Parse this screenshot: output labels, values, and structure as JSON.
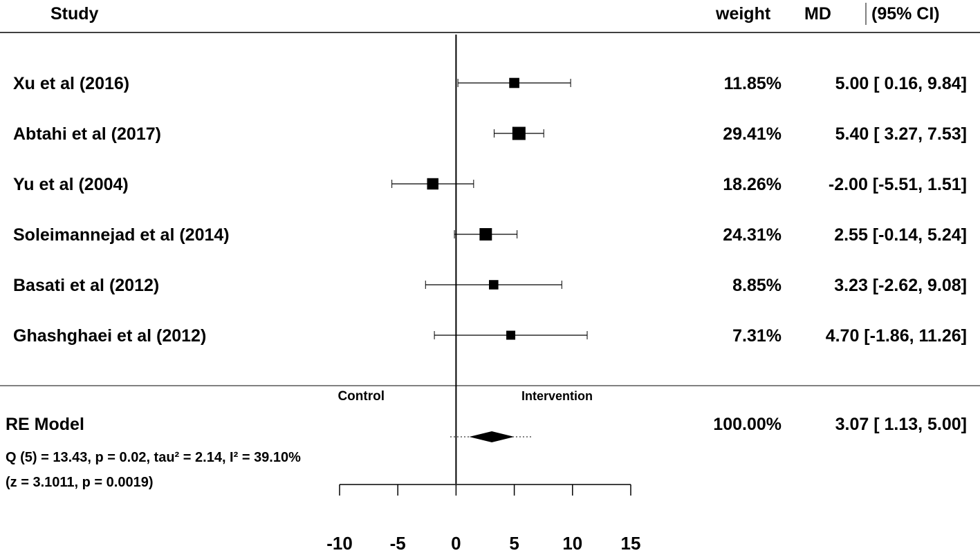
{
  "headers": {
    "study": "Study",
    "weight": "weight",
    "md": "MD",
    "ci": "(95% CI)"
  },
  "side_labels": {
    "left": "Control",
    "right": "Intervention"
  },
  "summary": {
    "label": "RE Model",
    "weight": "100.00%",
    "estimate_text": "3.07 [ 1.13,  5.00]",
    "heterogeneity": "Q (5) = 13.43, p = 0.02, tau² = 2.14, I² = 39.10%",
    "test": "(z = 3.1011, p = 0.0019)"
  },
  "chart_data": {
    "type": "forest",
    "x_ticks": [
      "-10",
      "-5",
      "0",
      "5",
      "10",
      "15"
    ],
    "xlim": [
      -10,
      15
    ],
    "reference_line": 0,
    "studies": [
      {
        "name": "Xu et al  (2016)",
        "weight": "11.85%",
        "weight_value": 11.85,
        "md": 5.0,
        "lower": 0.16,
        "upper": 9.84,
        "estimate_text": "5.00 [ 0.16,  9.84]"
      },
      {
        "name": "Abtahi et al (2017)",
        "weight": "29.41%",
        "weight_value": 29.41,
        "md": 5.4,
        "lower": 3.27,
        "upper": 7.53,
        "estimate_text": "5.40 [ 3.27,  7.53]"
      },
      {
        "name": "Yu et al (2004)",
        "weight": "18.26%",
        "weight_value": 18.26,
        "md": -2.0,
        "lower": -5.51,
        "upper": 1.51,
        "estimate_text": "-2.00 [-5.51,  1.51]"
      },
      {
        "name": "Soleimannejad et al (2014)",
        "weight": "24.31%",
        "weight_value": 24.31,
        "md": 2.55,
        "lower": -0.14,
        "upper": 5.24,
        "estimate_text": "2.55 [-0.14,  5.24]"
      },
      {
        "name": "Basati et al (2012)",
        "weight": "8.85%",
        "weight_value": 8.85,
        "md": 3.23,
        "lower": -2.62,
        "upper": 9.08,
        "estimate_text": "3.23 [-2.62,  9.08]"
      },
      {
        "name": "Ghashghaei et al (2012)",
        "weight": "7.31%",
        "weight_value": 7.31,
        "md": 4.7,
        "lower": -1.86,
        "upper": 11.26,
        "estimate_text": "4.70 [-1.86, 11.26]"
      }
    ],
    "pooled": {
      "md": 3.07,
      "lower": 1.13,
      "upper": 5.0,
      "pi_lower": -0.5,
      "pi_upper": 6.6
    }
  }
}
